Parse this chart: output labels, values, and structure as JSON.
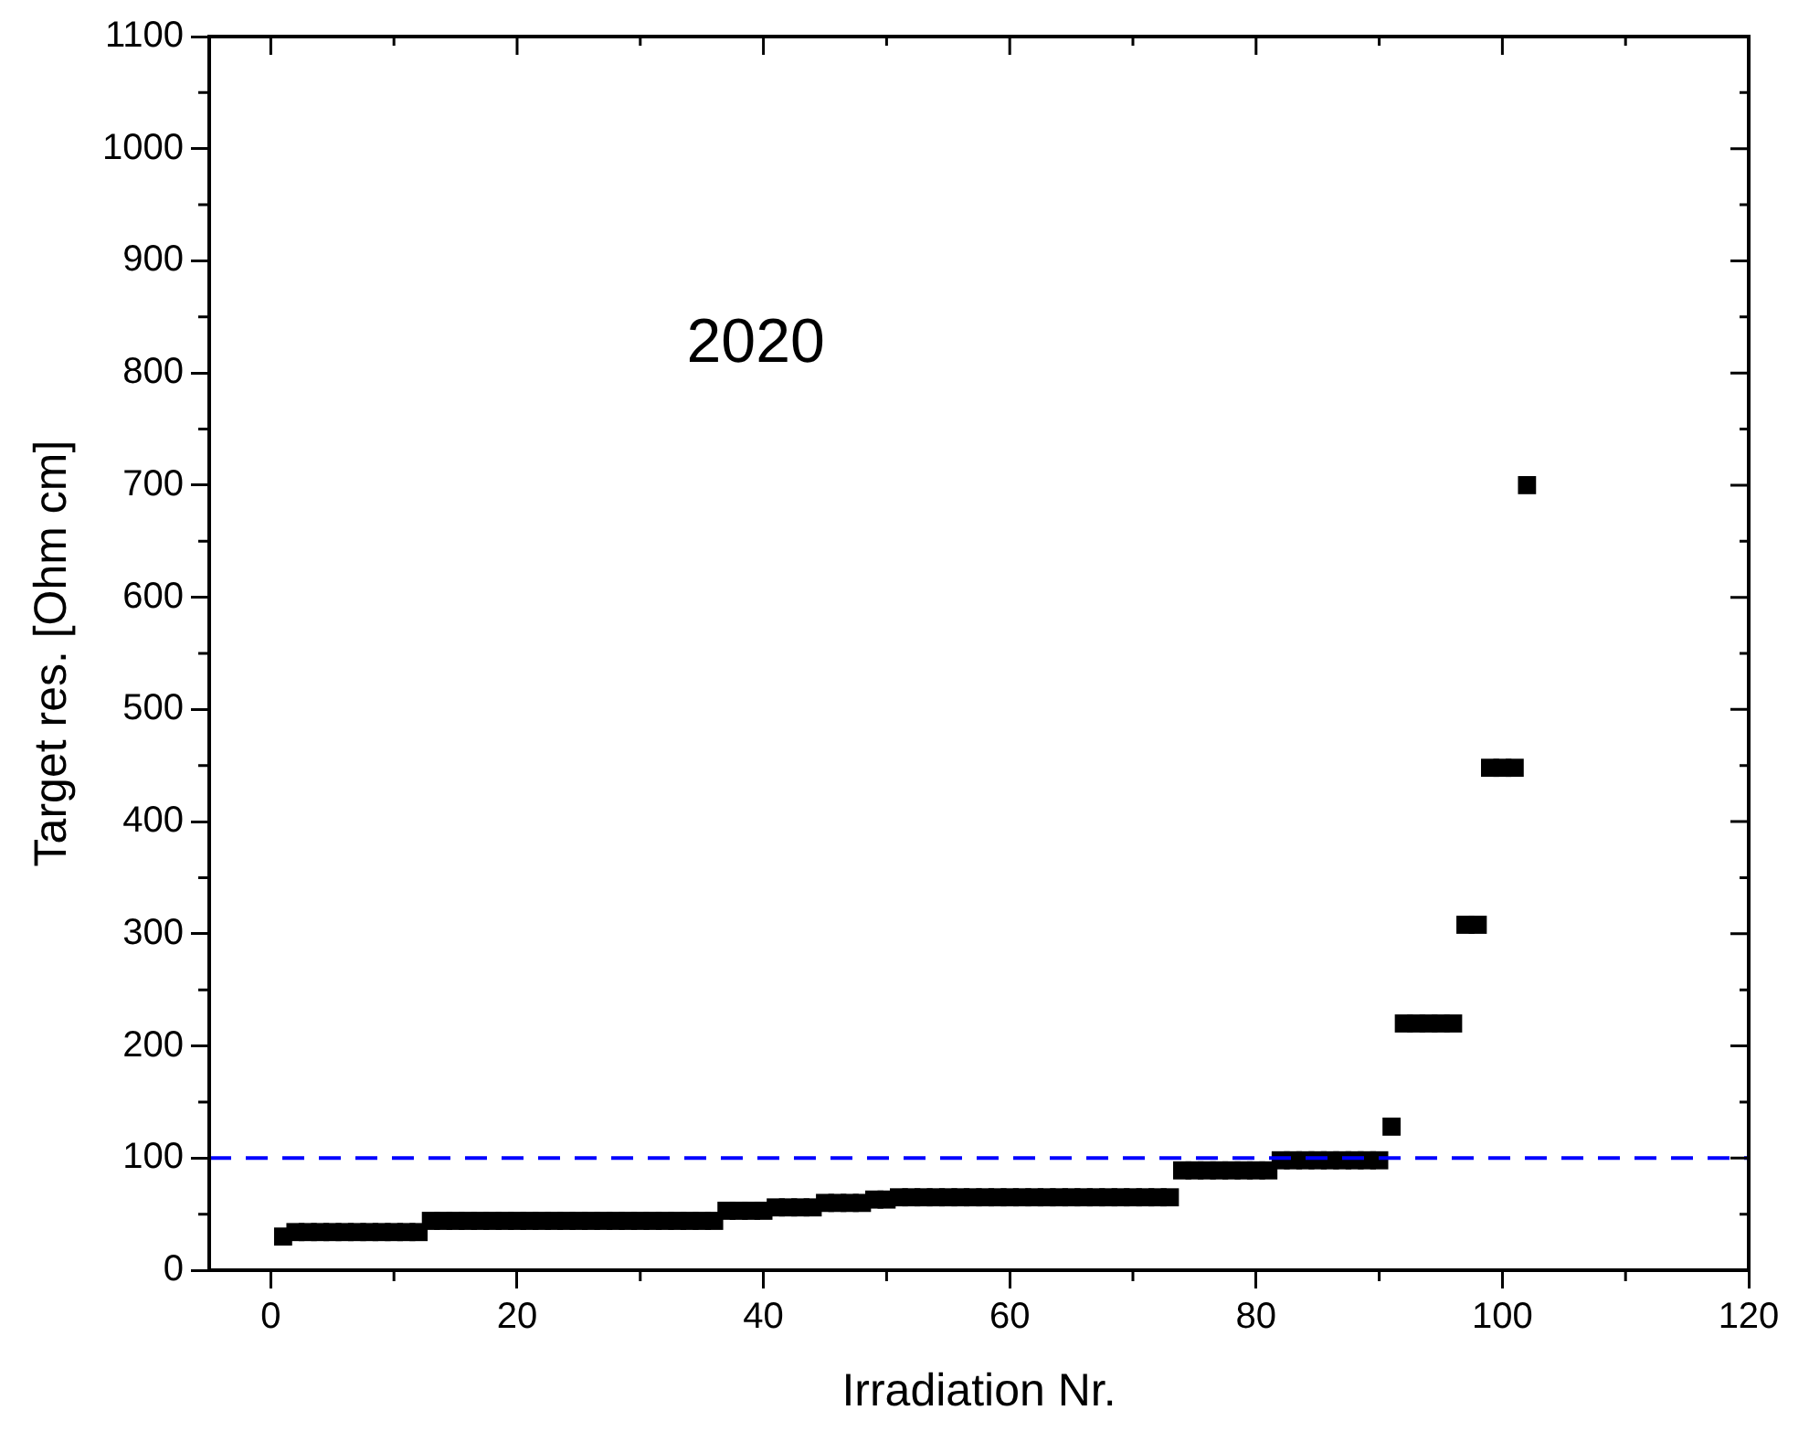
{
  "chart_data": {
    "type": "scatter",
    "xlabel": "Irradiation Nr.",
    "ylabel": "Target res. [Ohm cm]",
    "annotations": [
      "2020"
    ],
    "x": [
      1,
      2,
      3,
      4,
      5,
      6,
      7,
      8,
      9,
      10,
      11,
      12,
      13,
      14,
      15,
      16,
      17,
      18,
      19,
      20,
      21,
      22,
      23,
      24,
      25,
      26,
      27,
      28,
      29,
      30,
      31,
      32,
      33,
      34,
      35,
      36,
      37,
      38,
      39,
      40,
      41,
      42,
      43,
      44,
      45,
      46,
      47,
      48,
      49,
      50,
      51,
      52,
      53,
      54,
      55,
      56,
      57,
      58,
      59,
      60,
      61,
      62,
      63,
      64,
      65,
      66,
      67,
      68,
      69,
      70,
      71,
      72,
      73,
      74,
      75,
      76,
      77,
      78,
      79,
      80,
      81,
      82,
      83,
      84,
      85,
      86,
      87,
      88,
      89,
      90,
      91,
      92,
      93,
      94,
      95,
      96,
      97,
      98,
      99,
      100,
      101,
      102
    ],
    "series": [
      {
        "color": "#000000",
        "values": [
          30,
          34,
          34,
          34,
          34,
          34,
          34,
          34,
          34,
          34,
          34,
          34,
          44,
          44,
          44,
          44,
          44,
          44,
          44,
          44,
          44,
          44,
          44,
          44,
          44,
          44,
          44,
          44,
          44,
          44,
          44,
          44,
          44,
          44,
          44,
          44,
          53,
          53,
          53,
          53,
          56,
          56,
          56,
          56,
          60,
          60,
          60,
          60,
          63,
          63,
          65,
          65,
          65,
          65,
          65,
          65,
          65,
          65,
          65,
          65,
          65,
          65,
          65,
          65,
          65,
          65,
          65,
          65,
          65,
          65,
          65,
          65,
          65,
          89,
          89,
          89,
          89,
          89,
          89,
          89,
          89,
          98,
          98,
          98,
          98,
          98,
          98,
          98,
          98,
          98,
          128,
          220,
          220,
          220,
          220,
          220,
          308,
          308,
          448,
          448,
          448,
          700
        ]
      }
    ],
    "xlim": [
      -5,
      120
    ],
    "xticks": [
      0,
      20,
      40,
      60,
      80,
      100,
      120
    ],
    "ylim": [
      0,
      1100
    ],
    "yticks": [
      0,
      100,
      200,
      300,
      400,
      500,
      600,
      700,
      800,
      900,
      1000,
      1100
    ],
    "ref_lines": [
      {
        "axis": "y",
        "value": 100,
        "color": "#0000ff",
        "line_style": "dashed"
      }
    ],
    "marker": "square",
    "grid": false,
    "legend": false
  }
}
